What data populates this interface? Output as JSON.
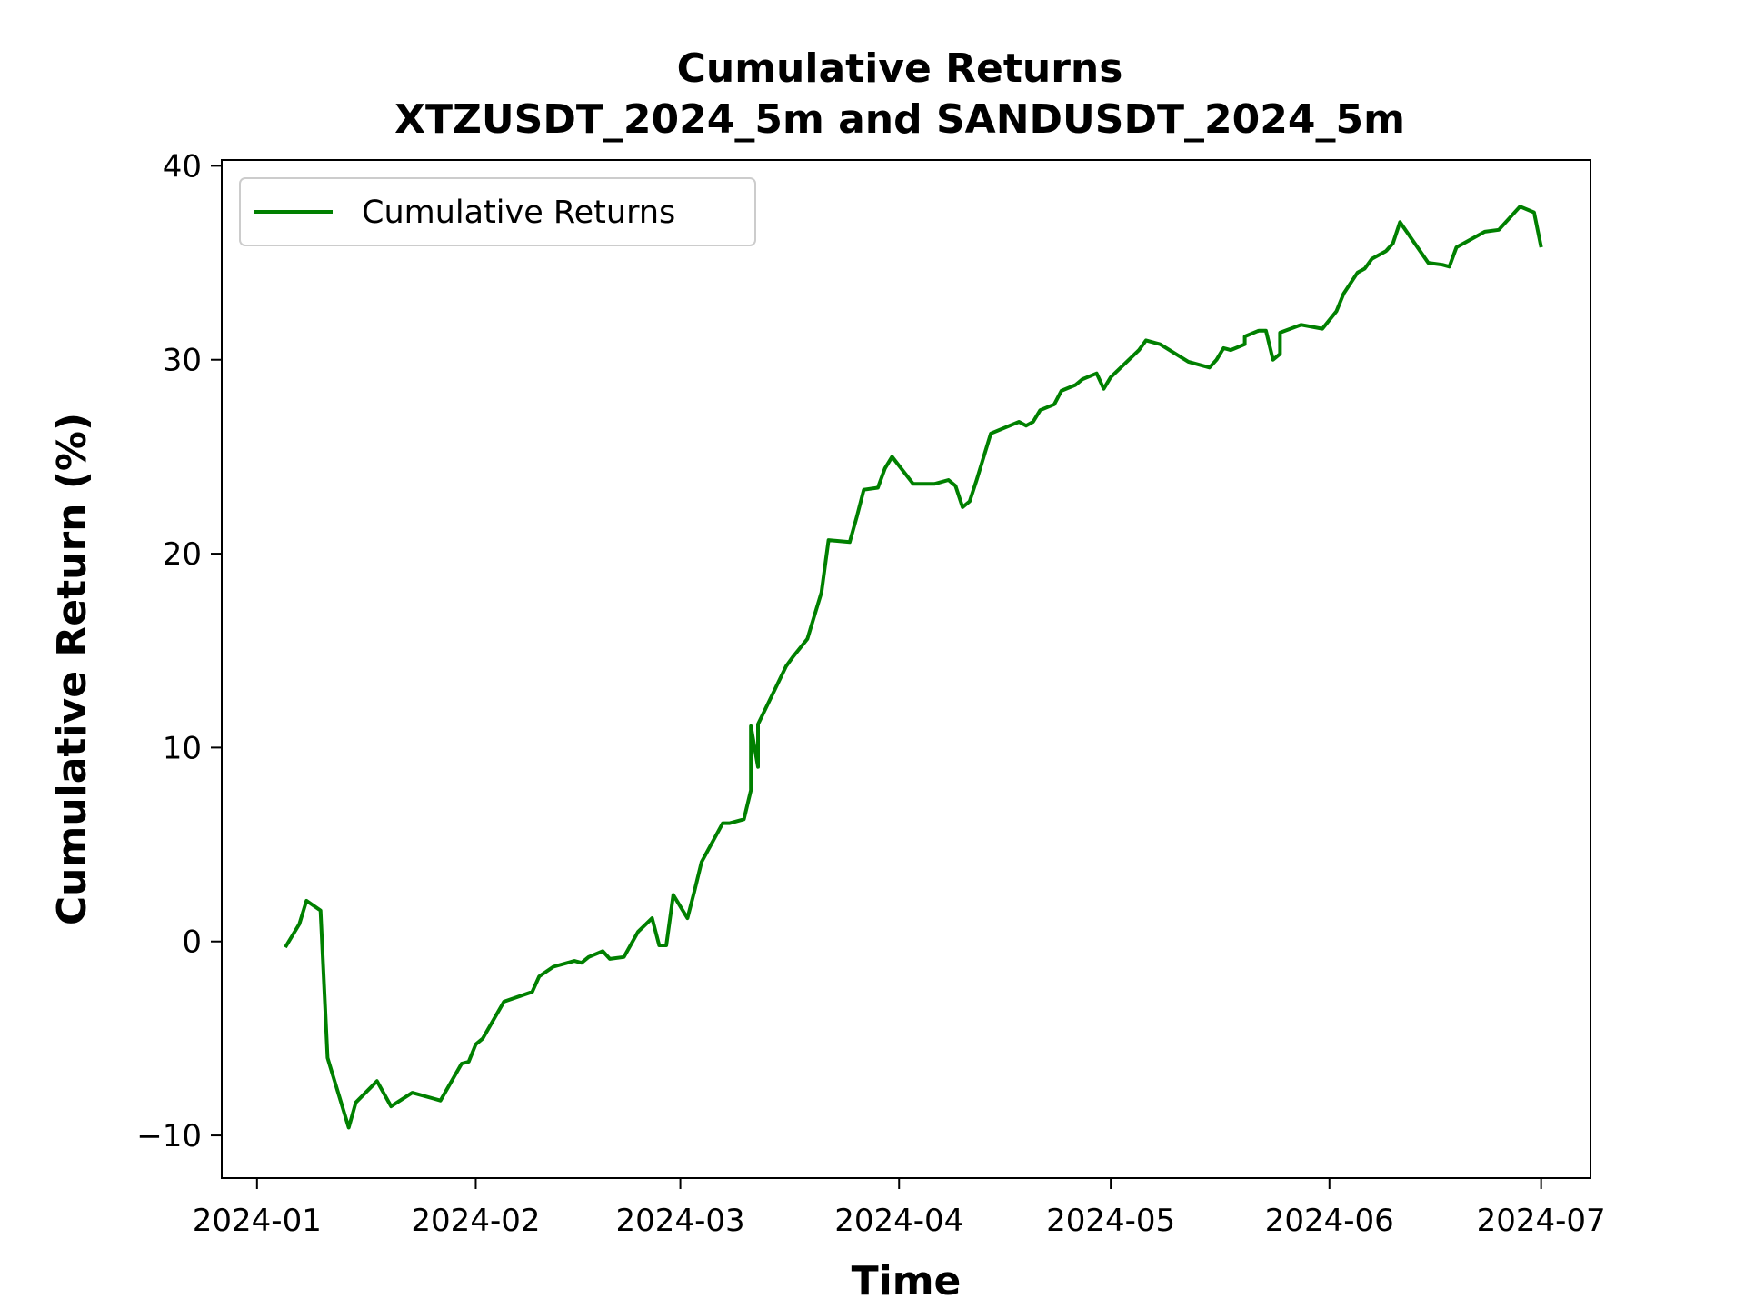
{
  "chart_data": {
    "type": "line",
    "title": "Cumulative Returns",
    "subtitle": "XTZUSDT_2024_5m and SANDUSDT_2024_5m",
    "xlabel": "Time",
    "ylabel": "Cumulative Return (%)",
    "x_ticks": [
      "2024-01",
      "2024-02",
      "2024-03",
      "2024-04",
      "2024-05",
      "2024-06",
      "2024-07"
    ],
    "y_ticks": [
      -10,
      0,
      10,
      20,
      30,
      40
    ],
    "xlim": [
      "2023-12-27",
      "2024-07-08"
    ],
    "ylim": [
      -12.2,
      40.3
    ],
    "grid": false,
    "legend_position": "upper-left",
    "series": [
      {
        "name": "Cumulative Returns",
        "color": "#008000",
        "points": [
          [
            "2024-01-05",
            -0.3
          ],
          [
            "2024-01-07",
            0.9
          ],
          [
            "2024-01-08",
            2.1
          ],
          [
            "2024-01-10",
            1.6
          ],
          [
            "2024-01-11",
            -6.0
          ],
          [
            "2024-01-14",
            -9.6
          ],
          [
            "2024-01-15",
            -8.3
          ],
          [
            "2024-01-18",
            -7.2
          ],
          [
            "2024-01-20",
            -8.5
          ],
          [
            "2024-01-23",
            -7.8
          ],
          [
            "2024-01-26",
            -8.1
          ],
          [
            "2024-01-27",
            -8.2
          ],
          [
            "2024-01-30",
            -6.3
          ],
          [
            "2024-01-31",
            -6.2
          ],
          [
            "2024-02-01",
            -5.3
          ],
          [
            "2024-02-02",
            -5.0
          ],
          [
            "2024-02-05",
            -3.1
          ],
          [
            "2024-02-09",
            -2.6
          ],
          [
            "2024-02-10",
            -1.8
          ],
          [
            "2024-02-12",
            -1.3
          ],
          [
            "2024-02-15",
            -1.0
          ],
          [
            "2024-02-16",
            -1.1
          ],
          [
            "2024-02-17",
            -0.8
          ],
          [
            "2024-02-19",
            -0.5
          ],
          [
            "2024-02-20",
            -0.9
          ],
          [
            "2024-02-22",
            -0.8
          ],
          [
            "2024-02-24",
            0.5
          ],
          [
            "2024-02-26",
            1.2
          ],
          [
            "2024-02-27",
            -0.2
          ],
          [
            "2024-02-28",
            -0.2
          ],
          [
            "2024-02-29",
            2.4
          ],
          [
            "2024-03-02",
            1.2
          ],
          [
            "2024-03-03",
            2.6
          ],
          [
            "2024-03-04",
            4.1
          ],
          [
            "2024-03-07",
            6.1
          ],
          [
            "2024-03-08",
            6.1
          ],
          [
            "2024-03-10",
            6.3
          ],
          [
            "2024-03-11",
            7.8
          ],
          [
            "2024-03-11",
            11.1
          ],
          [
            "2024-03-12",
            9.0
          ],
          [
            "2024-03-12",
            11.2
          ],
          [
            "2024-03-16",
            14.2
          ],
          [
            "2024-03-17",
            14.7
          ],
          [
            "2024-03-19",
            15.6
          ],
          [
            "2024-03-21",
            18.0
          ],
          [
            "2024-03-22",
            20.7
          ],
          [
            "2024-03-25",
            20.6
          ],
          [
            "2024-03-26",
            21.9
          ],
          [
            "2024-03-27",
            23.3
          ],
          [
            "2024-03-29",
            23.4
          ],
          [
            "2024-03-30",
            24.4
          ],
          [
            "2024-03-31",
            25.0
          ],
          [
            "2024-04-03",
            23.6
          ],
          [
            "2024-04-06",
            23.6
          ],
          [
            "2024-04-08",
            23.8
          ],
          [
            "2024-04-09",
            23.5
          ],
          [
            "2024-04-10",
            22.4
          ],
          [
            "2024-04-11",
            22.7
          ],
          [
            "2024-04-12",
            23.8
          ],
          [
            "2024-04-14",
            26.2
          ],
          [
            "2024-04-18",
            26.8
          ],
          [
            "2024-04-19",
            26.6
          ],
          [
            "2024-04-20",
            26.8
          ],
          [
            "2024-04-21",
            27.4
          ],
          [
            "2024-04-23",
            27.7
          ],
          [
            "2024-04-24",
            28.4
          ],
          [
            "2024-04-26",
            28.7
          ],
          [
            "2024-04-27",
            29.0
          ],
          [
            "2024-04-29",
            29.3
          ],
          [
            "2024-04-30",
            28.5
          ],
          [
            "2024-05-01",
            29.1
          ],
          [
            "2024-05-05",
            30.5
          ],
          [
            "2024-05-06",
            31.0
          ],
          [
            "2024-05-08",
            30.8
          ],
          [
            "2024-05-12",
            29.9
          ],
          [
            "2024-05-15",
            29.6
          ],
          [
            "2024-05-16",
            30.0
          ],
          [
            "2024-05-17",
            30.6
          ],
          [
            "2024-05-18",
            30.5
          ],
          [
            "2024-05-20",
            30.8
          ],
          [
            "2024-05-20",
            31.2
          ],
          [
            "2024-05-22",
            31.5
          ],
          [
            "2024-05-23",
            31.5
          ],
          [
            "2024-05-24",
            30.0
          ],
          [
            "2024-05-25",
            30.3
          ],
          [
            "2024-05-25",
            31.4
          ],
          [
            "2024-05-28",
            31.8
          ],
          [
            "2024-05-31",
            31.6
          ],
          [
            "2024-06-02",
            32.5
          ],
          [
            "2024-06-03",
            33.4
          ],
          [
            "2024-06-05",
            34.5
          ],
          [
            "2024-06-06",
            34.7
          ],
          [
            "2024-06-07",
            35.2
          ],
          [
            "2024-06-09",
            35.6
          ],
          [
            "2024-06-10",
            36.0
          ],
          [
            "2024-06-11",
            37.1
          ],
          [
            "2024-06-15",
            35.0
          ],
          [
            "2024-06-17",
            34.9
          ],
          [
            "2024-06-18",
            34.8
          ],
          [
            "2024-06-19",
            35.8
          ],
          [
            "2024-06-20",
            36.0
          ],
          [
            "2024-06-23",
            36.6
          ],
          [
            "2024-06-25",
            36.7
          ],
          [
            "2024-06-28",
            37.9
          ],
          [
            "2024-06-30",
            37.6
          ],
          [
            "2024-07-01",
            35.8
          ]
        ]
      }
    ]
  }
}
